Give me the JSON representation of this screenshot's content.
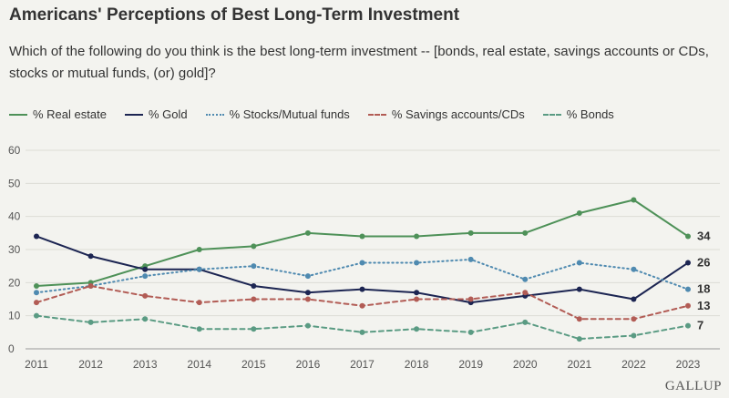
{
  "title": "Americans' Perceptions of Best Long-Term Investment",
  "subtitle": "Which of the following do you think is the best long-term investment -- [bonds, real estate, savings accounts or CDs, stocks or mutual funds, (or) gold]?",
  "brand": "GALLUP",
  "chart_data": {
    "type": "line",
    "x": [
      2011,
      2012,
      2013,
      2014,
      2015,
      2016,
      2017,
      2018,
      2019,
      2020,
      2021,
      2022,
      2023
    ],
    "ylim": [
      0,
      60
    ],
    "yticks": [
      0,
      10,
      20,
      30,
      40,
      50,
      60
    ],
    "grid": true,
    "legend": "top-left",
    "series": [
      {
        "name": "% Real estate",
        "color": "#4e9158",
        "dash": "solid",
        "end_label": "34",
        "values": [
          19,
          20,
          25,
          30,
          31,
          35,
          34,
          34,
          35,
          35,
          41,
          45,
          34
        ]
      },
      {
        "name": "% Gold",
        "color": "#1c2552",
        "dash": "solid",
        "end_label": "26",
        "values": [
          34,
          28,
          24,
          24,
          19,
          17,
          18,
          17,
          14,
          16,
          18,
          15,
          26
        ]
      },
      {
        "name": "% Stocks/Mutual funds",
        "color": "#4f8ab0",
        "dash": "dotted",
        "end_label": "18",
        "values": [
          17,
          19,
          22,
          24,
          25,
          22,
          26,
          26,
          27,
          21,
          26,
          24,
          18
        ]
      },
      {
        "name": "% Savings accounts/CDs",
        "color": "#b25c55",
        "dash": "dashed",
        "end_label": "13",
        "values": [
          14,
          19,
          16,
          14,
          15,
          15,
          13,
          15,
          15,
          17,
          9,
          9,
          13
        ]
      },
      {
        "name": "% Bonds",
        "color": "#5a9b83",
        "dash": "dashed",
        "end_label": "7",
        "values": [
          10,
          8,
          9,
          6,
          6,
          7,
          5,
          6,
          5,
          8,
          3,
          4,
          7
        ]
      }
    ]
  }
}
